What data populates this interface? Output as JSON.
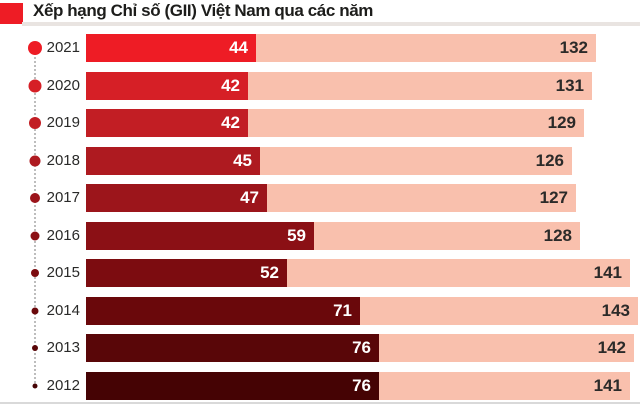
{
  "header": {
    "title": "Xếp hạng Chỉ số (GII) Việt Nam qua các năm"
  },
  "chart_data": {
    "type": "bar",
    "orientation": "horizontal",
    "title": "Xếp hạng Chỉ số (GII) Việt Nam qua các năm",
    "categories": [
      "2021",
      "2020",
      "2019",
      "2018",
      "2017",
      "2016",
      "2015",
      "2014",
      "2013",
      "2012"
    ],
    "series": [
      {
        "name": "rank-of-vietnam",
        "values": [
          44,
          42,
          42,
          45,
          47,
          59,
          52,
          71,
          76,
          76
        ]
      },
      {
        "name": "total-economies",
        "values": [
          132,
          131,
          129,
          126,
          127,
          128,
          141,
          143,
          142,
          141
        ]
      }
    ],
    "xlim": [
      0,
      143
    ],
    "grid": false,
    "legend": "none",
    "rank_bar_colors": [
      "#ee1c25",
      "#d61f26",
      "#c21e24",
      "#ae1a20",
      "#9c151b",
      "#8b1015",
      "#7c0c10",
      "#6a080b",
      "#590608",
      "#450304"
    ],
    "total_bar_color": "#f9c0ad"
  },
  "colors": {
    "accent_red": "#ee1c25",
    "title_text": "#1d1d1b",
    "year_text": "#2a2a29",
    "rank_text": "#ffffff",
    "total_text": "#2b2a29",
    "divider": "#e9e4e1",
    "bottom_line": "#d9d9d9",
    "dotted_line": "#bdbdbd"
  }
}
